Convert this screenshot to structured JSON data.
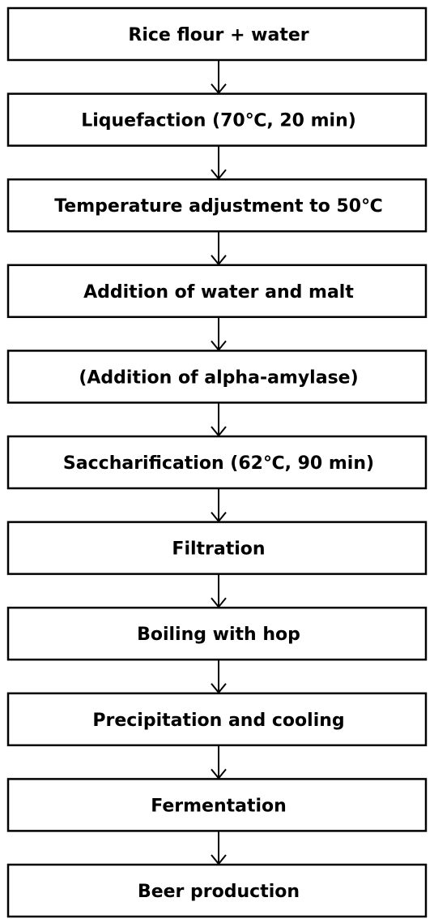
{
  "nodes": [
    {
      "label": "Rice flour + water"
    },
    {
      "label": "Liquefaction (70℃, 20 min)"
    },
    {
      "label": "Temperature adjustment to 50℃"
    },
    {
      "label": "Addition of water and malt"
    },
    {
      "label": "(Addition of alpha-amylase)"
    },
    {
      "label": "Saccharification (62℃, 90 min)"
    },
    {
      "label": "Filtration"
    },
    {
      "label": "Boiling with hop"
    },
    {
      "label": "Precipitation and cooling"
    },
    {
      "label": "Fermentation"
    },
    {
      "label": "Beer production"
    }
  ]
}
